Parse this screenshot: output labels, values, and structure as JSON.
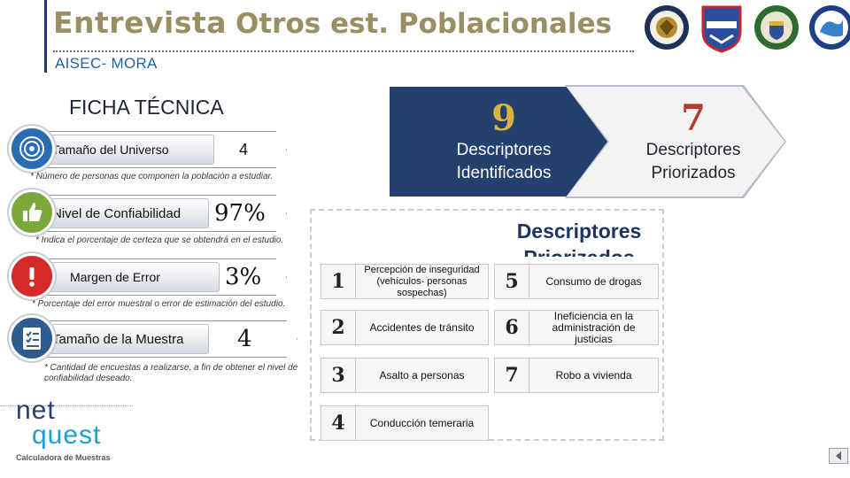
{
  "header": {
    "title_main": "Entrevista",
    "title_rest": "Otros est. Poblacionales",
    "subtitle": "AISEC- MORA",
    "logos": [
      "seal-emblem-icon",
      "fuerza-publica-emblem-icon",
      "police-emblem-icon",
      "regional-emblem-icon"
    ]
  },
  "ficha": {
    "title": "FICHA TÉCNICA",
    "universo": {
      "label": "Tamaño del Universo",
      "value": "4",
      "note": "* Número de personas que componen la población a estudiar.",
      "icon": "target-icon"
    },
    "confiabilidad": {
      "label": "Nivel de Confiabilidad",
      "value": "97%",
      "note": "* Indica el porcentaje de certeza que se obtendrá en el estudio.",
      "icon": "thumbs-up-icon"
    },
    "error": {
      "label": "Margen de Error",
      "value": "3%",
      "note": "* Porcentaje del error muestral o error de estimación del estudio.",
      "icon": "alert-icon"
    },
    "muestra": {
      "label": "Tamaño de la Muestra",
      "value": "4",
      "note": "* Cantidad de encuestas a realizarse, a fin de obtener el nivel de confiabilidad deseado.",
      "icon": "checklist-icon"
    }
  },
  "chevrons": {
    "identificados": {
      "number": "9",
      "label_line1": "Descriptores",
      "label_line2": "Identificados"
    },
    "priorizados": {
      "number": "7",
      "label_line1": "Descriptores",
      "label_line2": "Priorizados"
    }
  },
  "panel": {
    "heading_line1": "Descriptores",
    "heading_line2": "Priorizados",
    "items": [
      {
        "num": "1",
        "text": "Percepción de inseguridad (vehículos- personas sospechas)"
      },
      {
        "num": "2",
        "text": "Accidentes de tránsito"
      },
      {
        "num": "3",
        "text": "Asalto a personas"
      },
      {
        "num": "4",
        "text": "Conducción temeraria"
      },
      {
        "num": "5",
        "text": "Consumo de drogas"
      },
      {
        "num": "6",
        "text": "Ineficiencia en la administración de justicias"
      },
      {
        "num": "7",
        "text": "Robo a vivienda"
      }
    ]
  },
  "brand": {
    "net": "net",
    "quest": "quest",
    "caption": "Calculadora de Muestras"
  },
  "colors": {
    "accent_blue": "#23406e",
    "gold": "#d9b43c",
    "red": "#b23a2e",
    "title_khaki": "#9a8f63",
    "subtitle_blue": "#1d63a6"
  }
}
